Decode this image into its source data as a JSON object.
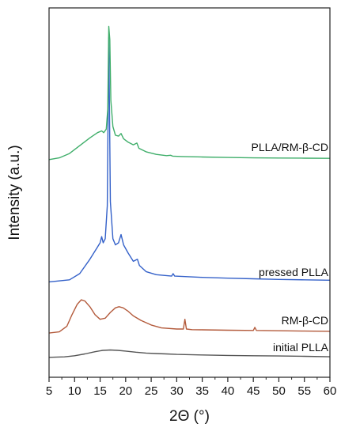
{
  "chart_data": {
    "type": "line",
    "title": "",
    "xlabel": "2Θ (°)",
    "ylabel": "Intensity (a.u.)",
    "xlim": [
      5,
      60
    ],
    "xticks": [
      5,
      10,
      15,
      20,
      25,
      30,
      35,
      40,
      45,
      50,
      55,
      60
    ],
    "yticks": [],
    "y_units": "arbitrary",
    "grid": false,
    "legend": "none (series labelled directly above each curve)",
    "series": [
      {
        "name": "initial PLLA",
        "color": "#555555",
        "points": [
          [
            5,
            0.9
          ],
          [
            8,
            1.4
          ],
          [
            10,
            2.5
          ],
          [
            12,
            4.2
          ],
          [
            14,
            6.4
          ],
          [
            15.5,
            7.7
          ],
          [
            17,
            8.1
          ],
          [
            18.5,
            7.7
          ],
          [
            20,
            7.0
          ],
          [
            22,
            5.9
          ],
          [
            24,
            5.1
          ],
          [
            26,
            4.6
          ],
          [
            28,
            4.2
          ],
          [
            30,
            3.8
          ],
          [
            35,
            3.2
          ],
          [
            40,
            2.8
          ],
          [
            45,
            2.5
          ],
          [
            50,
            2.2
          ],
          [
            55,
            1.9
          ],
          [
            60,
            1.5
          ]
        ]
      },
      {
        "name": "RM-β-CD",
        "color": "#b35a3b",
        "points": [
          [
            5,
            2
          ],
          [
            7,
            3
          ],
          [
            8.5,
            8
          ],
          [
            9.5,
            18
          ],
          [
            10.5,
            27
          ],
          [
            11.3,
            31
          ],
          [
            12,
            30
          ],
          [
            13,
            25
          ],
          [
            14,
            18
          ],
          [
            15,
            14
          ],
          [
            16,
            15
          ],
          [
            17,
            20
          ],
          [
            18,
            24
          ],
          [
            18.7,
            25
          ],
          [
            19.5,
            24
          ],
          [
            20.5,
            21
          ],
          [
            21.5,
            17
          ],
          [
            23,
            13
          ],
          [
            25,
            9
          ],
          [
            27,
            6.5
          ],
          [
            30,
            5.5
          ],
          [
            31.3,
            5.5
          ],
          [
            31.6,
            14
          ],
          [
            31.9,
            5.5
          ],
          [
            33,
            5
          ],
          [
            35,
            4.8
          ],
          [
            40,
            4.5
          ],
          [
            45,
            4.3
          ],
          [
            45.3,
            7
          ],
          [
            45.6,
            4.3
          ],
          [
            50,
            4
          ],
          [
            55,
            3.7
          ],
          [
            60,
            3.5
          ]
        ]
      },
      {
        "name": "pressed PLLA",
        "color": "#3461c9",
        "points": [
          [
            5,
            1
          ],
          [
            9,
            2
          ],
          [
            11,
            5
          ],
          [
            13,
            12
          ],
          [
            14.5,
            18
          ],
          [
            15,
            20
          ],
          [
            15.3,
            23
          ],
          [
            15.6,
            20
          ],
          [
            16,
            22
          ],
          [
            16.4,
            38
          ],
          [
            16.7,
            120
          ],
          [
            17,
            40
          ],
          [
            17.5,
            22
          ],
          [
            18,
            19
          ],
          [
            18.6,
            20
          ],
          [
            19.1,
            24
          ],
          [
            19.6,
            19
          ],
          [
            20.5,
            15
          ],
          [
            21.5,
            11
          ],
          [
            22.3,
            12
          ],
          [
            22.7,
            9
          ],
          [
            24,
            6
          ],
          [
            26,
            4.5
          ],
          [
            29,
            3.8
          ],
          [
            29.3,
            5
          ],
          [
            29.6,
            3.8
          ],
          [
            35,
            3.2
          ],
          [
            40,
            2.8
          ],
          [
            45,
            2.5
          ],
          [
            50,
            2.2
          ],
          [
            55,
            2
          ],
          [
            60,
            1.8
          ]
        ]
      },
      {
        "name": "PLLA/RM-β-CD",
        "color": "#3fae6a",
        "points": [
          [
            5,
            2
          ],
          [
            7,
            4
          ],
          [
            9,
            9
          ],
          [
            11,
            18
          ],
          [
            13,
            27
          ],
          [
            14.5,
            33
          ],
          [
            15.3,
            35
          ],
          [
            15.7,
            33
          ],
          [
            16.2,
            37
          ],
          [
            16.5,
            60
          ],
          [
            16.7,
            155
          ],
          [
            16.9,
            140
          ],
          [
            17.1,
            70
          ],
          [
            17.5,
            40
          ],
          [
            18,
            30
          ],
          [
            18.6,
            29
          ],
          [
            19.1,
            32
          ],
          [
            19.6,
            26
          ],
          [
            20.5,
            22
          ],
          [
            21.5,
            19
          ],
          [
            22.2,
            21
          ],
          [
            22.6,
            15
          ],
          [
            24,
            11
          ],
          [
            26,
            8
          ],
          [
            28,
            6.5
          ],
          [
            28.8,
            7
          ],
          [
            29.2,
            6
          ],
          [
            31,
            5.5
          ],
          [
            35,
            5
          ],
          [
            40,
            4.5
          ],
          [
            45,
            4
          ],
          [
            50,
            3.8
          ],
          [
            55,
            3.6
          ],
          [
            60,
            3.5
          ]
        ]
      }
    ]
  }
}
